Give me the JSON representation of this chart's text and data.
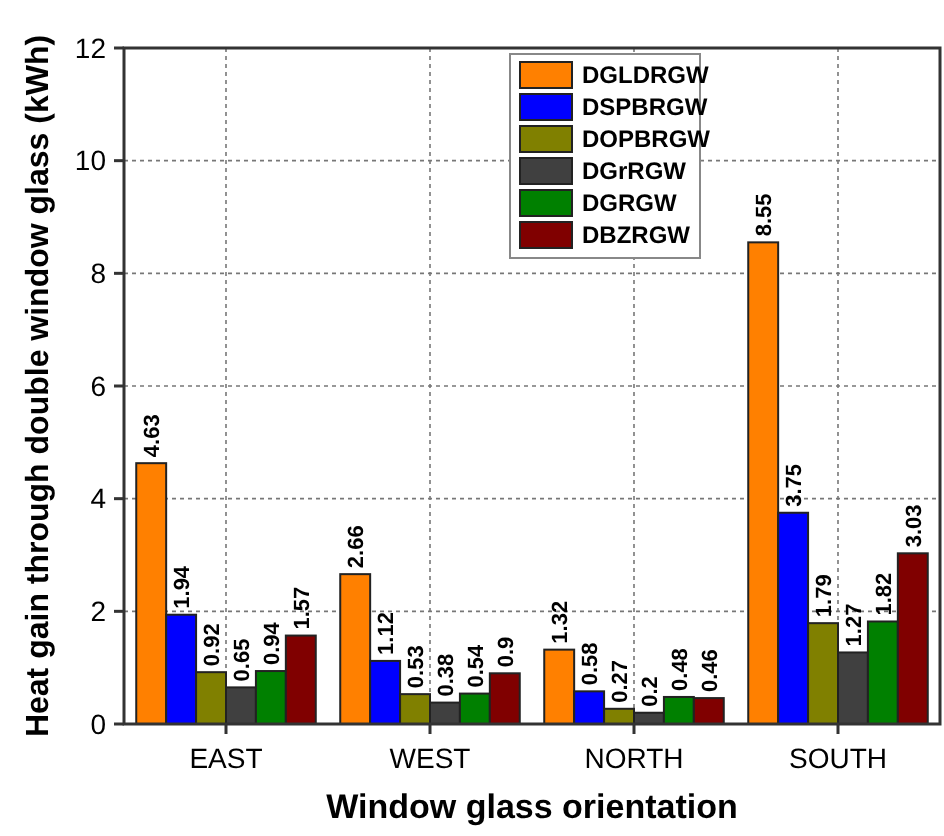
{
  "chart_data": {
    "type": "bar",
    "xlabel": "Window glass orientation",
    "ylabel": "Heat gain through double window glass (kWh)",
    "categories": [
      "EAST",
      "WEST",
      "NORTH",
      "SOUTH"
    ],
    "series": [
      {
        "name": "DGLDRGW",
        "color": "#ff8000",
        "values": [
          4.63,
          2.66,
          1.32,
          8.55
        ]
      },
      {
        "name": "DSPBRGW",
        "color": "#0000ff",
        "values": [
          1.94,
          1.12,
          0.58,
          3.75
        ]
      },
      {
        "name": "DOPBRGW",
        "color": "#808000",
        "values": [
          0.92,
          0.53,
          0.27,
          1.79
        ]
      },
      {
        "name": "DGrRGW",
        "color": "#404040",
        "values": [
          0.65,
          0.38,
          0.2,
          1.27
        ]
      },
      {
        "name": "DGRGW",
        "color": "#008000",
        "values": [
          0.94,
          0.54,
          0.48,
          1.82
        ]
      },
      {
        "name": "DBZRGW",
        "color": "#800000",
        "values": [
          1.57,
          0.9,
          0.46,
          3.03
        ]
      }
    ],
    "ylim": [
      0,
      12
    ],
    "yticks": [
      0,
      2,
      4,
      6,
      8,
      10,
      12
    ],
    "grid": true,
    "legend": "top",
    "data_labels": true
  }
}
